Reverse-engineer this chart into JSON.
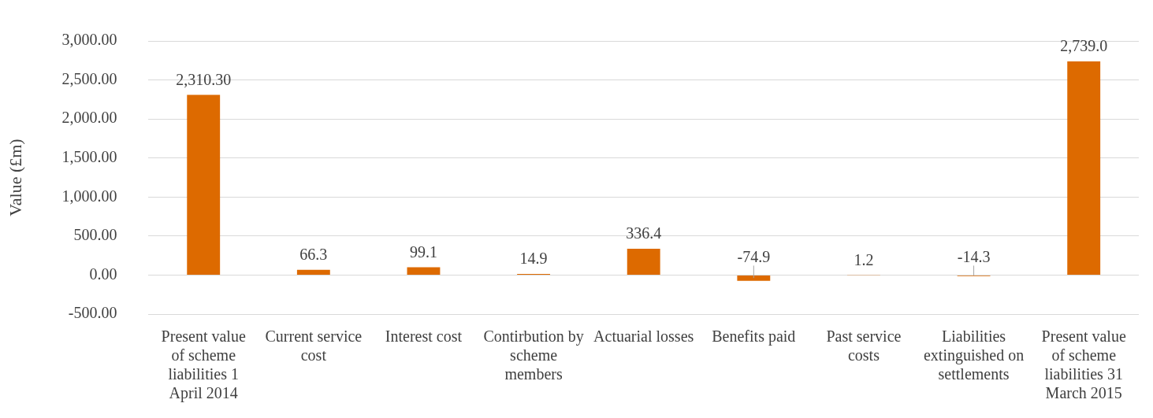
{
  "chart_data": {
    "type": "bar",
    "ylabel": "Value (£m)",
    "categories": [
      "Present value of scheme liabilities 1 April 2014",
      "Current service cost",
      "Interest cost",
      "Contirbution by scheme members",
      "Actuarial losses",
      "Benefits paid",
      "Past service costs",
      "Liabilities extinguished on settlements",
      "Present value of scheme liabilities 31 March 2015"
    ],
    "values": [
      2310.3,
      66.3,
      99.1,
      14.9,
      336.4,
      -74.9,
      1.2,
      -14.3,
      2739.0
    ],
    "value_labels": [
      "2,310.30",
      "66.3",
      "99.1",
      "14.9",
      "336.4",
      "-74.9",
      "1.2",
      "-14.3",
      "2,739.0"
    ],
    "color": "#dd6a00",
    "ylim": [
      -500,
      3000
    ],
    "yticks": [
      {
        "value": -500,
        "label": "-500.00"
      },
      {
        "value": 0,
        "label": "0.00"
      },
      {
        "value": 500,
        "label": "500.00"
      },
      {
        "value": 1000,
        "label": "1,000.00"
      },
      {
        "value": 1500,
        "label": "1,500.00"
      },
      {
        "value": 2000,
        "label": "2,000.00"
      },
      {
        "value": 2500,
        "label": "2,500.00"
      },
      {
        "value": 3000,
        "label": "3,000.00"
      }
    ],
    "grid": "y",
    "legend": false
  }
}
